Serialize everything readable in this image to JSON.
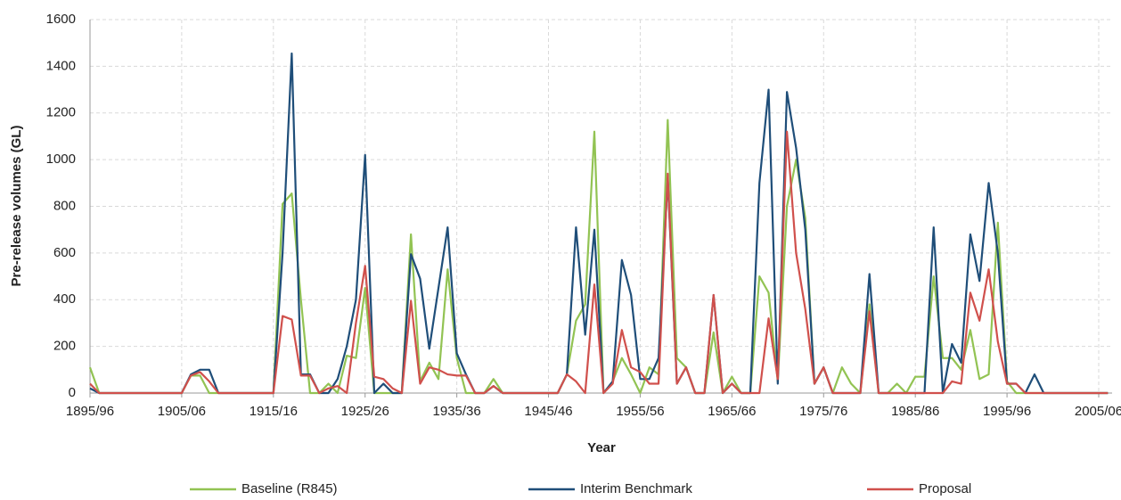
{
  "chart_data": {
    "type": "line",
    "x_label": "Year",
    "y_label": "Pre-release volumes (GL)",
    "categories": [
      "1895/96",
      null,
      null,
      null,
      null,
      null,
      null,
      null,
      null,
      null,
      "1905/06",
      null,
      null,
      null,
      null,
      null,
      null,
      null,
      null,
      null,
      "1915/16",
      null,
      null,
      null,
      null,
      null,
      null,
      null,
      null,
      null,
      "1925/26",
      null,
      null,
      null,
      null,
      null,
      null,
      null,
      null,
      null,
      "1935/36",
      null,
      null,
      null,
      null,
      null,
      null,
      null,
      null,
      null,
      "1945/46",
      null,
      null,
      null,
      null,
      null,
      null,
      null,
      null,
      null,
      "1955/56",
      null,
      null,
      null,
      null,
      null,
      null,
      null,
      null,
      null,
      "1965/66",
      null,
      null,
      null,
      null,
      null,
      null,
      null,
      null,
      null,
      "1975/76",
      null,
      null,
      null,
      null,
      null,
      null,
      null,
      null,
      null,
      "1985/86",
      null,
      null,
      null,
      null,
      null,
      null,
      null,
      null,
      null,
      "1995/96",
      null,
      null,
      null,
      null,
      null,
      null,
      null,
      null,
      null,
      "2005/06",
      null
    ],
    "series": [
      {
        "name": "Baseline (R845)",
        "color": "#92c353",
        "values": [
          110,
          0,
          0,
          0,
          0,
          0,
          0,
          0,
          0,
          0,
          0,
          75,
          75,
          0,
          0,
          0,
          0,
          0,
          0,
          0,
          0,
          810,
          855,
          400,
          0,
          0,
          40,
          0,
          160,
          150,
          450,
          0,
          0,
          0,
          0,
          680,
          50,
          130,
          60,
          530,
          150,
          0,
          0,
          0,
          60,
          0,
          0,
          0,
          0,
          0,
          0,
          0,
          80,
          310,
          380,
          1120,
          0,
          50,
          150,
          80,
          0,
          110,
          80,
          1170,
          150,
          110,
          0,
          0,
          260,
          0,
          70,
          0,
          0,
          500,
          430,
          50,
          800,
          1000,
          750,
          40,
          110,
          0,
          110,
          40,
          0,
          380,
          0,
          0,
          40,
          0,
          70,
          70,
          500,
          150,
          150,
          100,
          270,
          60,
          80,
          730,
          50,
          0,
          0,
          0,
          0,
          0,
          0,
          0,
          0,
          0,
          0,
          0
        ]
      },
      {
        "name": "Interim Benchmark",
        "color": "#1f4e79",
        "values": [
          20,
          0,
          0,
          0,
          0,
          0,
          0,
          0,
          0,
          0,
          0,
          80,
          100,
          100,
          0,
          0,
          0,
          0,
          0,
          0,
          0,
          600,
          1455,
          80,
          80,
          0,
          0,
          60,
          200,
          400,
          1020,
          0,
          40,
          0,
          0,
          595,
          490,
          190,
          450,
          710,
          170,
          80,
          0,
          0,
          30,
          0,
          0,
          0,
          0,
          0,
          0,
          0,
          80,
          710,
          250,
          700,
          0,
          50,
          570,
          420,
          60,
          60,
          150,
          920,
          40,
          110,
          0,
          0,
          420,
          0,
          40,
          0,
          0,
          900,
          1300,
          40,
          1290,
          1050,
          700,
          40,
          110,
          0,
          0,
          0,
          0,
          510,
          0,
          0,
          0,
          0,
          0,
          0,
          710,
          0,
          210,
          130,
          680,
          480,
          900,
          600,
          40,
          40,
          0,
          80,
          0,
          0,
          0,
          0,
          0,
          0,
          0,
          0
        ]
      },
      {
        "name": "Proposal",
        "color": "#d0504c",
        "values": [
          40,
          0,
          0,
          0,
          0,
          0,
          0,
          0,
          0,
          0,
          0,
          75,
          90,
          50,
          0,
          0,
          0,
          0,
          0,
          0,
          0,
          330,
          315,
          75,
          75,
          0,
          20,
          30,
          0,
          300,
          545,
          70,
          60,
          20,
          0,
          395,
          40,
          110,
          100,
          80,
          75,
          75,
          0,
          0,
          30,
          0,
          0,
          0,
          0,
          0,
          0,
          0,
          80,
          50,
          0,
          465,
          0,
          40,
          270,
          110,
          90,
          40,
          40,
          940,
          40,
          110,
          0,
          0,
          420,
          0,
          40,
          0,
          0,
          0,
          320,
          60,
          1120,
          600,
          360,
          40,
          110,
          0,
          0,
          0,
          0,
          350,
          0,
          0,
          0,
          0,
          0,
          0,
          0,
          0,
          50,
          40,
          430,
          310,
          530,
          220,
          40,
          40,
          0,
          0,
          0,
          0,
          0,
          0,
          0,
          0,
          0,
          0
        ]
      }
    ],
    "ylim": [
      0,
      1600
    ],
    "yticks": [
      0,
      200,
      400,
      600,
      800,
      1000,
      1200,
      1400,
      1600
    ],
    "grid": true,
    "legend": "bottom"
  }
}
